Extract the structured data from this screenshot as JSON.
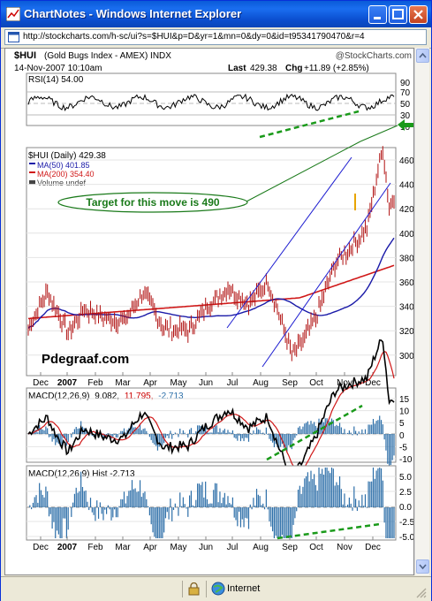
{
  "window": {
    "title": "ChartNotes - Windows Internet Explorer",
    "address": "http://stockcharts.com/h-sc/ui?s=$HUI&p=D&yr=1&mn=0&dy=0&id=t95341790470&r=4",
    "status_zone": "Internet"
  },
  "chart_header": {
    "symbol": "$HUI",
    "name": "(Gold Bugs Index - AMEX) INDX",
    "brand": "@StockCharts.com",
    "date": "14-Nov-2007 10:10am",
    "last_label": "Last",
    "last_value": "429.38",
    "chg_label": "Chg",
    "chg_value": "+11.89 (+2.85%)"
  },
  "rsi_panel": {
    "label": "RSI(14) 54.00",
    "ticks": [
      "90",
      "70",
      "50",
      "30",
      "10"
    ]
  },
  "price_panel": {
    "legend": [
      {
        "text": "$HUI (Daily) 429.38",
        "color": "#000000"
      },
      {
        "text": "MA(50) 401.85",
        "color": "#1a1aa8"
      },
      {
        "text": "MA(200) 354.40",
        "color": "#d01818"
      },
      {
        "text": "Volume undef",
        "color": "#444444"
      }
    ],
    "annotation": "Target for this move is 490",
    "watermark": "Pdegraaf.com",
    "ticks": [
      "460",
      "440",
      "420",
      "400",
      "380",
      "360",
      "340",
      "320",
      "300"
    ]
  },
  "macd_panel": {
    "label_prefix": "MACD(12,26,9)",
    "value1": "9.082,",
    "value2": "11.795,",
    "value3": "-2.713",
    "ticks": [
      "15",
      "10",
      "5",
      "0",
      "-5",
      "-10"
    ]
  },
  "hist_panel": {
    "label": "MACD(12,26,9) Hist -2.713",
    "ticks": [
      "5.0",
      "2.5",
      "0.0",
      "-2.5",
      "-5.0"
    ]
  },
  "x_axis": {
    "labels": [
      "Dec",
      "2007",
      "Feb",
      "Mar",
      "Apr",
      "May",
      "Jun",
      "Jul",
      "Aug",
      "Sep",
      "Oct",
      "Nov",
      "Dec"
    ]
  },
  "colors": {
    "ie_blue": "#0a5bd8",
    "annotation_green": "#1a7a1a",
    "trend_blue": "#1c1cd0",
    "histogram": "#2c6ea8"
  }
}
